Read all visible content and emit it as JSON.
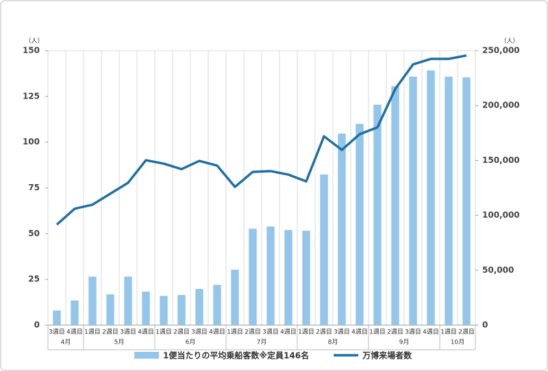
{
  "chart_data": {
    "type": "bar-line",
    "categories": [
      "3週目",
      "4週目",
      "1週目",
      "2週目",
      "3週目",
      "4週目",
      "1週目",
      "2週目",
      "3週目",
      "4週目",
      "1週目",
      "2週目",
      "3週目",
      "4週目",
      "1週目",
      "2週目",
      "3週目",
      "4週目",
      "1週目",
      "2週目",
      "3週目",
      "4週目",
      "1週目",
      "2週目"
    ],
    "category_groups": [
      "4月",
      null,
      "5月",
      null,
      null,
      null,
      "6月",
      null,
      null,
      null,
      "7月",
      null,
      null,
      null,
      "8月",
      null,
      null,
      null,
      "9月",
      null,
      null,
      null,
      "10月",
      null
    ],
    "y_unit": "（人）",
    "y2_unit": "（人）",
    "ylim": [
      0,
      150
    ],
    "yticks": [
      0,
      25,
      50,
      75,
      100,
      125,
      150
    ],
    "y2lim": [
      0,
      250000
    ],
    "y2ticks": [
      0,
      {
        "value": 50000,
        "label": "50,000"
      },
      {
        "value": 100000,
        "label": "100,000"
      },
      {
        "value": 150000,
        "label": "150,000"
      },
      {
        "value": 200000,
        "label": "200,000"
      },
      {
        "value": 250000,
        "label": "250,000"
      }
    ],
    "series": [
      {
        "name": "1便当たりの平均乗船客数※定員146名",
        "type": "bar",
        "color": "#93c6ea",
        "values": [
          8,
          13.5,
          26.5,
          16.8,
          26.5,
          18.3,
          16,
          16.5,
          19.8,
          22,
          30.3,
          52.7,
          53.9,
          52,
          51.6,
          82.3,
          104.7,
          110,
          120.5,
          130.6,
          135.8,
          139.2,
          135.8,
          135.4
        ]
      },
      {
        "name": "万博来場者数",
        "type": "line",
        "color": "#1f6fa5",
        "axis": "y2",
        "values": [
          91600,
          106000,
          109700,
          119700,
          129700,
          150200,
          147100,
          142100,
          149600,
          145300,
          125900,
          139600,
          140300,
          137100,
          130900,
          172000,
          159600,
          173900,
          180200,
          215100,
          237500,
          242500,
          242500,
          245600
        ]
      }
    ]
  }
}
